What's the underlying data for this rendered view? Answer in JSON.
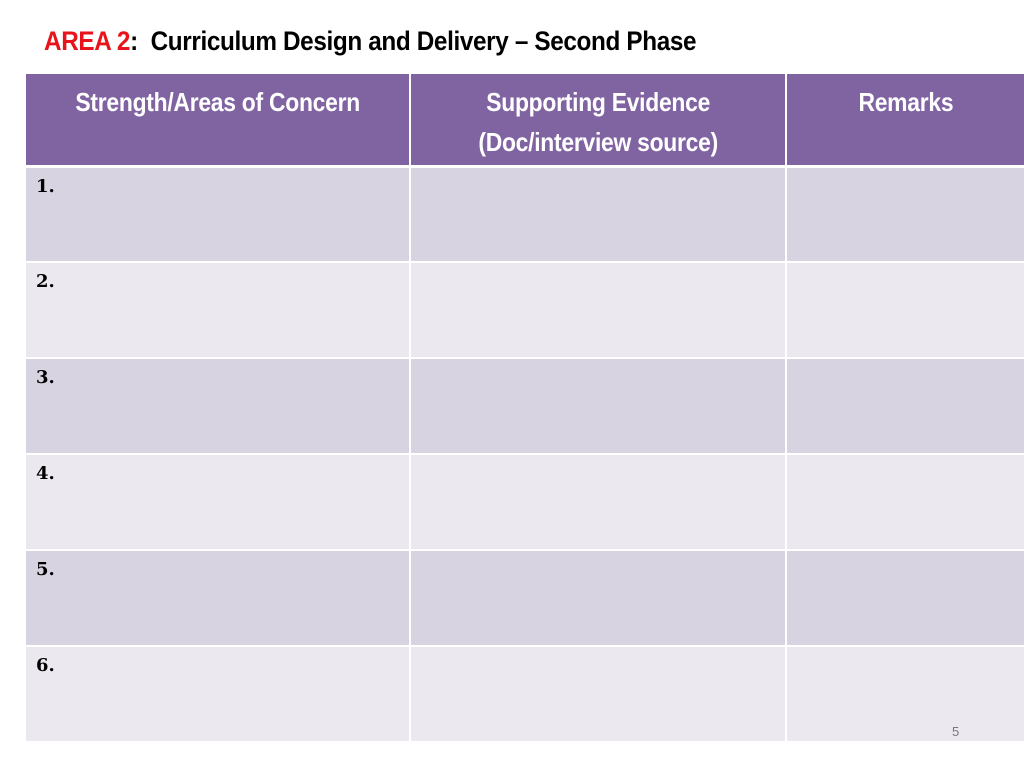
{
  "title": {
    "area_label": "AREA 2",
    "separator": ":",
    "text": "Curriculum Design and Delivery – Second Phase"
  },
  "table": {
    "headers": [
      {
        "line1": "Strength/Areas of Concern",
        "line2": ""
      },
      {
        "line1": "Supporting Evidence",
        "line2": "(Doc/interview source)"
      },
      {
        "line1": "Remarks",
        "line2": ""
      }
    ],
    "rows": [
      {
        "number": "1.",
        "evidence": "",
        "remarks": ""
      },
      {
        "number": "2.",
        "evidence": "",
        "remarks": ""
      },
      {
        "number": "3.",
        "evidence": "",
        "remarks": ""
      },
      {
        "number": "4.",
        "evidence": "",
        "remarks": ""
      },
      {
        "number": "5.",
        "evidence": "",
        "remarks": ""
      },
      {
        "number": "6.",
        "evidence": "",
        "remarks": ""
      }
    ]
  },
  "page_number": "5",
  "colors": {
    "area_label": "#e8141b",
    "header_bg": "#8064a2",
    "row_odd_bg": "#d8d3e1",
    "row_even_bg": "#ebe9ef"
  }
}
